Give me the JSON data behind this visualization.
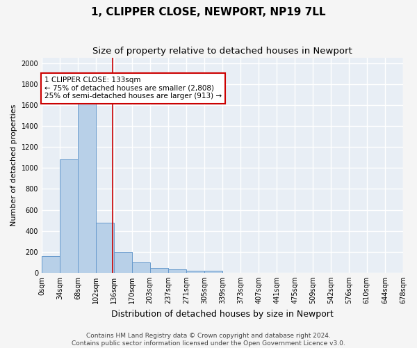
{
  "title": "1, CLIPPER CLOSE, NEWPORT, NP19 7LL",
  "subtitle": "Size of property relative to detached houses in Newport",
  "xlabel": "Distribution of detached houses by size in Newport",
  "ylabel": "Number of detached properties",
  "footer_line1": "Contains HM Land Registry data © Crown copyright and database right 2024.",
  "footer_line2": "Contains public sector information licensed under the Open Government Licence v3.0.",
  "bar_values": [
    160,
    1080,
    1620,
    480,
    200,
    100,
    45,
    35,
    20,
    20,
    0,
    0,
    0,
    0,
    0,
    0,
    0,
    0,
    0,
    0
  ],
  "bin_edges": [
    0,
    34,
    68,
    102,
    136,
    170,
    203,
    237,
    271,
    305,
    339,
    373,
    407,
    441,
    475,
    509,
    542,
    576,
    610,
    644,
    678
  ],
  "tick_labels": [
    "0sqm",
    "34sqm",
    "68sqm",
    "102sqm",
    "136sqm",
    "170sqm",
    "203sqm",
    "237sqm",
    "271sqm",
    "305sqm",
    "339sqm",
    "373sqm",
    "407sqm",
    "441sqm",
    "475sqm",
    "509sqm",
    "542sqm",
    "576sqm",
    "610sqm",
    "644sqm",
    "678sqm"
  ],
  "vline_x": 133,
  "vline_color": "#cc0000",
  "bar_facecolor": "#b8d0e8",
  "bar_edgecolor": "#6699cc",
  "annotation_text": "1 CLIPPER CLOSE: 133sqm\n← 75% of detached houses are smaller (2,808)\n25% of semi-detached houses are larger (913) →",
  "annotation_box_edgecolor": "#cc0000",
  "annotation_box_facecolor": "#ffffff",
  "ylim": [
    0,
    2050
  ],
  "yticks": [
    0,
    200,
    400,
    600,
    800,
    1000,
    1200,
    1400,
    1600,
    1800,
    2000
  ],
  "bg_color": "#e8eef5",
  "grid_color": "#ffffff",
  "fig_facecolor": "#f5f5f5",
  "title_fontsize": 11,
  "subtitle_fontsize": 9.5,
  "xlabel_fontsize": 9,
  "ylabel_fontsize": 8,
  "tick_fontsize": 7,
  "annotation_fontsize": 7.5,
  "footer_fontsize": 6.5
}
